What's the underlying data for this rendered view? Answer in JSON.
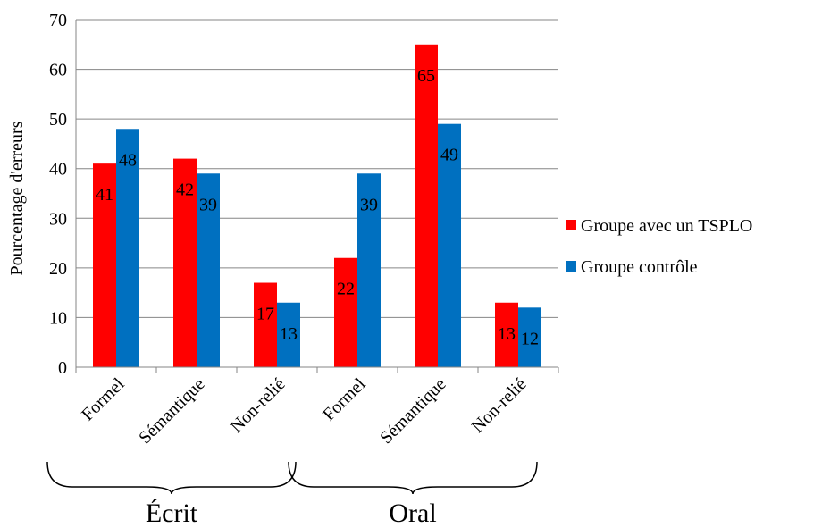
{
  "chart_data": {
    "type": "bar",
    "ylabel": "Pourcentage d'erreurs",
    "xlabel": "",
    "ylim": [
      0,
      70
    ],
    "yticks": [
      0,
      10,
      20,
      30,
      40,
      50,
      60,
      70
    ],
    "grid": true,
    "legend_position": "right",
    "categories": [
      "Formel",
      "Sémantique",
      "Non-relié",
      "Formel",
      "Sémantique",
      "Non-relié"
    ],
    "groups": [
      {
        "label": "Écrit",
        "categories": [
          0,
          1,
          2
        ]
      },
      {
        "label": "Oral",
        "categories": [
          3,
          4,
          5
        ]
      }
    ],
    "series": [
      {
        "name": "Groupe avec un TSPLO",
        "color": "#ff0000",
        "values": [
          41,
          42,
          17,
          22,
          65,
          13
        ]
      },
      {
        "name": "Groupe contrôle",
        "color": "#0070c0",
        "values": [
          48,
          39,
          13,
          39,
          49,
          12
        ]
      }
    ]
  }
}
